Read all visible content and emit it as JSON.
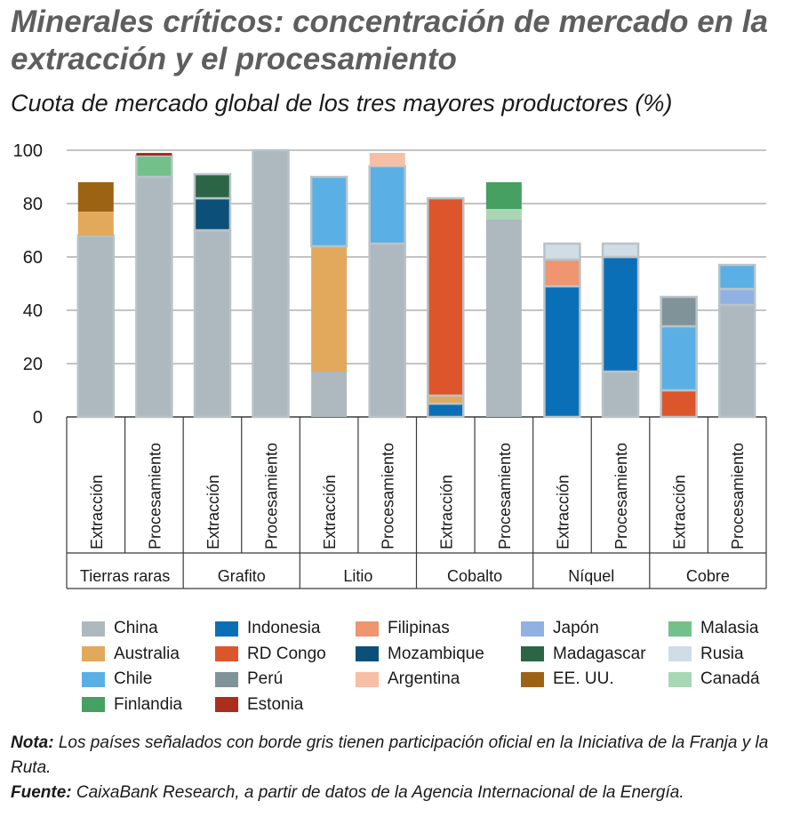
{
  "title": "Minerales críticos: concentración de mercado en la extracción y el procesamiento",
  "subtitle": "Cuota de mercado global de los tres mayores productores (%)",
  "colors": {
    "China": "#adb9be",
    "Indonesia": "#0b6fb8",
    "Filipinas": "#ef9570",
    "Japón": "#8fb2e3",
    "Malasia": "#74c08a",
    "Australia": "#e2a85c",
    "RD Congo": "#dd562b",
    "Mozambique": "#0c4f78",
    "Madagascar": "#2b6545",
    "Rusia": "#d0dde6",
    "Chile": "#5ab0e4",
    "Perú": "#7f9399",
    "Argentina": "#f6bfa6",
    "EE. UU.": "#9c6314",
    "Canadá": "#a9d7b6",
    "Finlandia": "#46a062",
    "Estonia": "#ad2d1c"
  },
  "legend": [
    {
      "name": "China",
      "icon": "swatch"
    },
    {
      "name": "Indonesia",
      "icon": "swatch"
    },
    {
      "name": "Filipinas",
      "icon": "swatch"
    },
    {
      "name": "Japón",
      "icon": "swatch"
    },
    {
      "name": "Malasia",
      "icon": "swatch"
    },
    {
      "name": "Australia",
      "icon": "swatch"
    },
    {
      "name": "RD Congo",
      "icon": "swatch"
    },
    {
      "name": "Mozambique",
      "icon": "swatch"
    },
    {
      "name": "Madagascar",
      "icon": "swatch"
    },
    {
      "name": "Rusia",
      "icon": "swatch"
    },
    {
      "name": "Chile",
      "icon": "swatch"
    },
    {
      "name": "Perú",
      "icon": "swatch"
    },
    {
      "name": "Argentina",
      "icon": "swatch"
    },
    {
      "name": "EE. UU.",
      "icon": "swatch"
    },
    {
      "name": "Canadá",
      "icon": "swatch"
    },
    {
      "name": "Finlandia",
      "icon": "swatch"
    },
    {
      "name": "Estonia",
      "icon": "swatch"
    }
  ],
  "chart_data": {
    "type": "bar",
    "stacked": true,
    "ylim": [
      0,
      100
    ],
    "yticks": [
      0,
      20,
      40,
      60,
      80,
      100
    ],
    "grid": true,
    "legend_position": "bottom",
    "groups": [
      "Tierras raras",
      "Grafito",
      "Litio",
      "Cobalto",
      "Níquel",
      "Cobre"
    ],
    "categories": [
      {
        "group": "Tierras raras",
        "label": "Extracción",
        "stack": [
          {
            "country": "China",
            "value": 68,
            "border": true
          },
          {
            "country": "Australia",
            "value": 9,
            "border": false
          },
          {
            "country": "EE. UU.",
            "value": 11,
            "border": false
          }
        ]
      },
      {
        "group": "Tierras raras",
        "label": "Procesamiento",
        "stack": [
          {
            "country": "China",
            "value": 90,
            "border": true
          },
          {
            "country": "Malasia",
            "value": 8,
            "border": true
          },
          {
            "country": "Estonia",
            "value": 1,
            "border": false
          }
        ]
      },
      {
        "group": "Grafito",
        "label": "Extracción",
        "stack": [
          {
            "country": "China",
            "value": 70,
            "border": true
          },
          {
            "country": "Mozambique",
            "value": 12,
            "border": true
          },
          {
            "country": "Madagascar",
            "value": 9,
            "border": true
          }
        ]
      },
      {
        "group": "Grafito",
        "label": "Procesamiento",
        "stack": [
          {
            "country": "China",
            "value": 100,
            "border": true
          }
        ]
      },
      {
        "group": "Litio",
        "label": "Extracción",
        "stack": [
          {
            "country": "China",
            "value": 17,
            "border": false
          },
          {
            "country": "Australia",
            "value": 47,
            "border": false
          },
          {
            "country": "Chile",
            "value": 26,
            "border": true
          }
        ]
      },
      {
        "group": "Litio",
        "label": "Procesamiento",
        "stack": [
          {
            "country": "China",
            "value": 65,
            "border": true
          },
          {
            "country": "Chile",
            "value": 29,
            "border": true
          },
          {
            "country": "Argentina",
            "value": 5,
            "border": false
          }
        ]
      },
      {
        "group": "Cobalto",
        "label": "Extracción",
        "stack": [
          {
            "country": "Indonesia",
            "value": 5,
            "border": true
          },
          {
            "country": "Australia",
            "value": 3,
            "border": true
          },
          {
            "country": "RD Congo",
            "value": 74,
            "border": true
          }
        ]
      },
      {
        "group": "Cobalto",
        "label": "Procesamiento",
        "stack": [
          {
            "country": "China",
            "value": 74,
            "border": false
          },
          {
            "country": "Canadá",
            "value": 4,
            "border": false
          },
          {
            "country": "Finlandia",
            "value": 10,
            "border": false
          }
        ]
      },
      {
        "group": "Níquel",
        "label": "Extracción",
        "stack": [
          {
            "country": "Indonesia",
            "value": 49,
            "border": true
          },
          {
            "country": "Filipinas",
            "value": 10,
            "border": true
          },
          {
            "country": "Rusia",
            "value": 6,
            "border": true
          }
        ]
      },
      {
        "group": "Níquel",
        "label": "Procesamiento",
        "stack": [
          {
            "country": "China",
            "value": 17,
            "border": true
          },
          {
            "country": "Indonesia",
            "value": 43,
            "border": true
          },
          {
            "country": "Rusia",
            "value": 5,
            "border": true
          }
        ]
      },
      {
        "group": "Cobre",
        "label": "Extracción",
        "stack": [
          {
            "country": "RD Congo",
            "value": 10,
            "border": true
          },
          {
            "country": "Chile",
            "value": 24,
            "border": true
          },
          {
            "country": "Perú",
            "value": 11,
            "border": true
          }
        ]
      },
      {
        "group": "Cobre",
        "label": "Procesamiento",
        "stack": [
          {
            "country": "China",
            "value": 42,
            "border": true
          },
          {
            "country": "Japón",
            "value": 6,
            "border": true
          },
          {
            "country": "Chile",
            "value": 9,
            "border": true
          }
        ]
      }
    ]
  },
  "notes": {
    "nota_label": "Nota:",
    "nota_text": " Los países señalados con borde gris tienen participación oficial en la Iniciativa de la Franja y la Ruta.",
    "fuente_label": "Fuente:",
    "fuente_text": " CaixaBank Research, a partir de datos de la Agencia Internacional de la Energía."
  }
}
